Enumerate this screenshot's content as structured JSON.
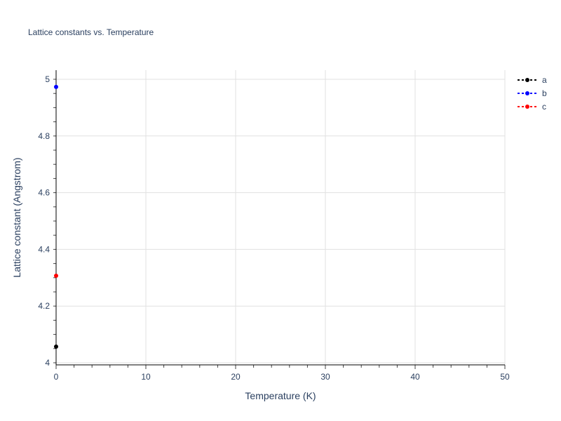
{
  "chart_data": {
    "type": "scatter",
    "title": "Lattice constants vs. Temperature",
    "xlabel": "Temperature (K)",
    "ylabel": "Lattice constant (Angstrom)",
    "xlim": [
      0,
      50
    ],
    "ylim": [
      4,
      5.03
    ],
    "xticks": [
      0,
      10,
      20,
      30,
      40,
      50
    ],
    "yticks": [
      4,
      4.2,
      4.4,
      4.6,
      4.8,
      5
    ],
    "ytick_labels": [
      "4",
      "4.2",
      "4.4",
      "4.6",
      "4.8",
      "5"
    ],
    "grid": true,
    "legend_placement": "top-right",
    "series": [
      {
        "name": "a",
        "color": "#000000",
        "x": [
          0
        ],
        "y": [
          4.057
        ]
      },
      {
        "name": "b",
        "color": "#0000ff",
        "x": [
          0
        ],
        "y": [
          4.973
        ]
      },
      {
        "name": "c",
        "color": "#ff0000",
        "x": [
          0
        ],
        "y": [
          4.307
        ]
      }
    ]
  }
}
